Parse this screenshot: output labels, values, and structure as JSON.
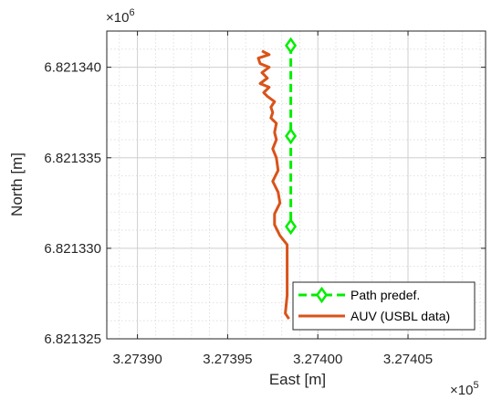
{
  "chart_data": {
    "type": "line",
    "xlabel": "East [m]",
    "ylabel": "North [m]",
    "x_multiplier": "×10",
    "x_multiplier_exp": "5",
    "y_multiplier": "×10",
    "y_multiplier_exp": "6",
    "xlim": [
      327388.3,
      327409.3
    ],
    "ylim": [
      6821325.0,
      6821342.0
    ],
    "x_ticks": [
      327390,
      327395,
      327400,
      327405
    ],
    "x_tick_labels": [
      "3.27390",
      "3.27395",
      "3.27400",
      "3.27405"
    ],
    "y_ticks": [
      6821325,
      6821330,
      6821335,
      6821340
    ],
    "y_tick_labels": [
      "6.821325",
      "6.821330",
      "6.821335",
      "6.821340"
    ],
    "grid": true,
    "minor_grid": true,
    "legend_position": "bottom-right",
    "series": [
      {
        "name": "Path predef.",
        "color": "#00ee00",
        "style": "dashed",
        "marker": "diamond",
        "x": [
          327398.5,
          327398.5,
          327398.5
        ],
        "y": [
          6821341.2,
          6821336.2,
          6821331.2
        ]
      },
      {
        "name": "AUV (USBL data)",
        "color": "#d95319",
        "style": "solid",
        "marker": "none",
        "x": [
          327398.4,
          327398.2,
          327398.3,
          327398.3,
          327398.3,
          327398.3,
          327397.9,
          327397.6,
          327397.6,
          327397.9,
          327397.8,
          327397.5,
          327397.8,
          327397.7,
          327397.5,
          327397.7,
          327397.6,
          327397.7,
          327397.4,
          327397.5,
          327397.4,
          327397.6,
          327397.2,
          327397.0,
          327397.3,
          327396.8,
          327397.2,
          327396.9,
          327397.3,
          327396.8,
          327396.7,
          327397.3,
          327396.9
        ],
        "y": [
          6821326.1,
          6821326.4,
          6821327.4,
          6821328.2,
          6821329.2,
          6821330.2,
          6821330.7,
          6821331.3,
          6821331.9,
          6821332.5,
          6821333.1,
          6821333.7,
          6821334.3,
          6821335.0,
          6821335.5,
          6821336.0,
          6821336.4,
          6821336.9,
          6821337.2,
          6821337.5,
          6821337.8,
          6821338.1,
          6821338.4,
          6821338.6,
          6821338.9,
          6821339.1,
          6821339.4,
          6821339.7,
          6821340.0,
          6821340.2,
          6821340.5,
          6821340.7,
          6821340.9
        ]
      }
    ]
  }
}
